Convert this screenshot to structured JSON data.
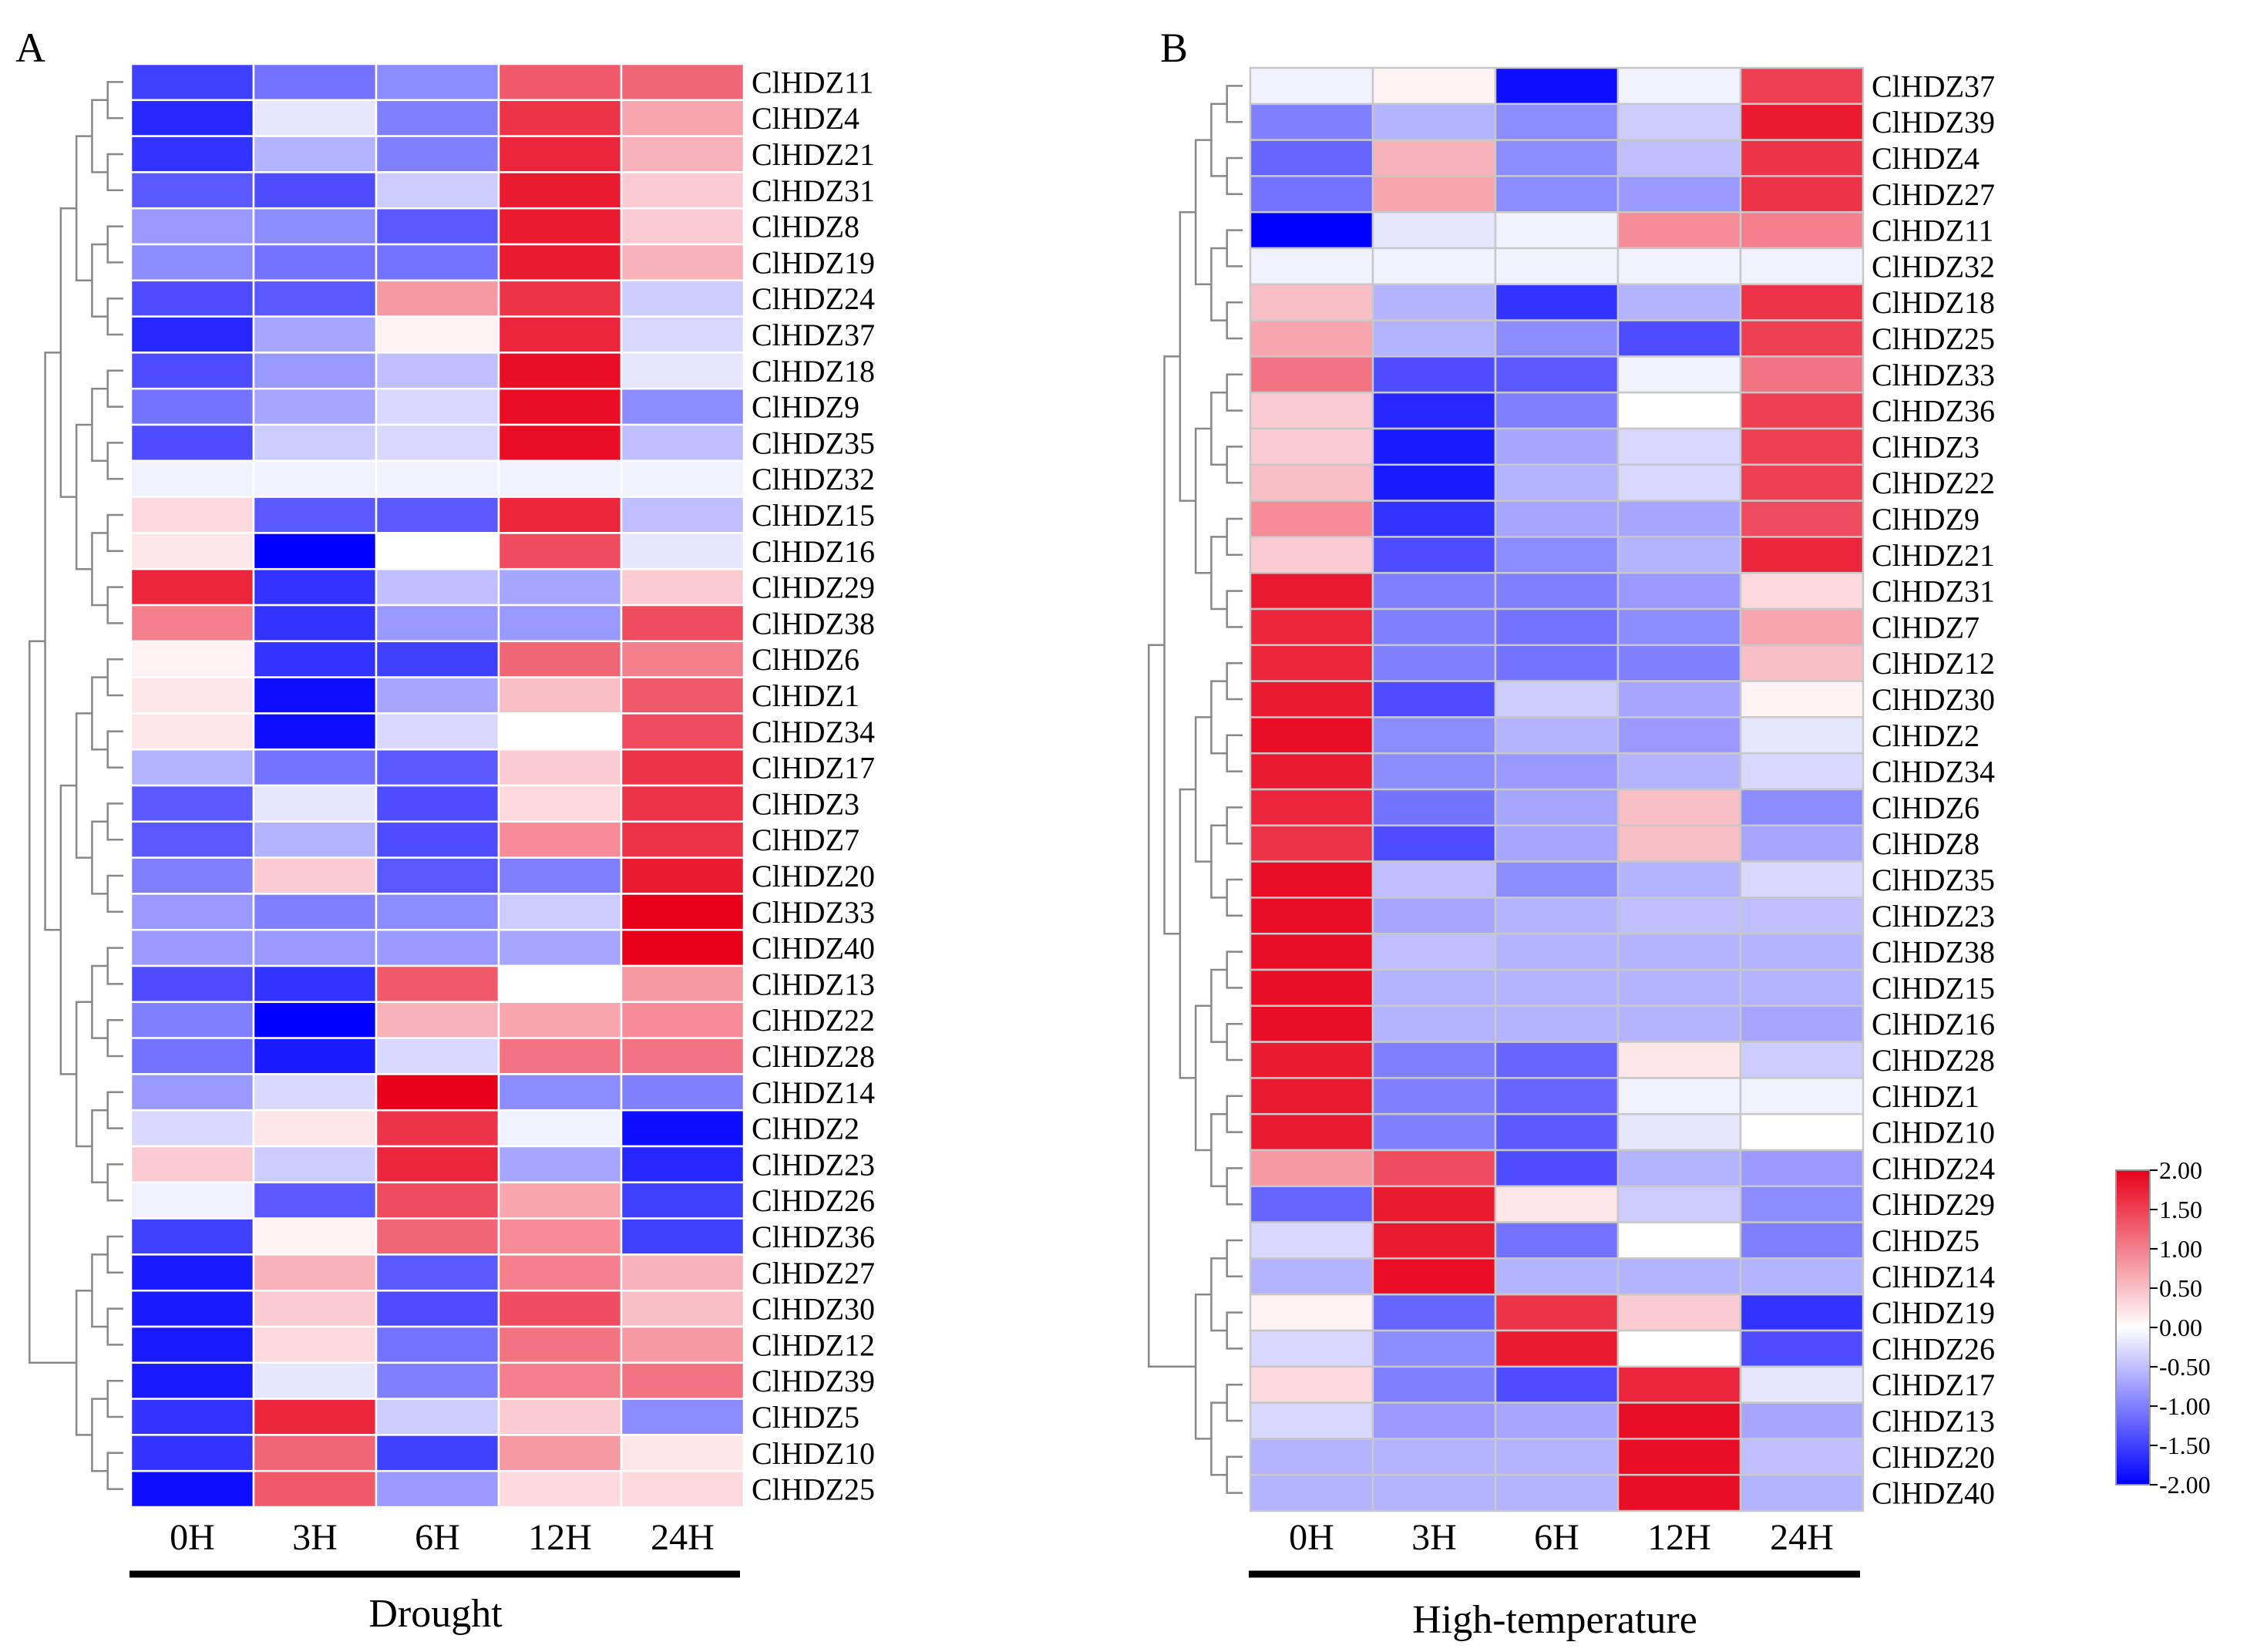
{
  "chart_data": [
    {
      "type": "heatmap",
      "panel_label": "A",
      "group_label": "Drought",
      "x_categories": [
        "0H",
        "3H",
        "6H",
        "12H",
        "24H"
      ],
      "rows": [
        {
          "gene": "ClHDZ11",
          "values": [
            -1.5,
            -1.1,
            -0.9,
            1.3,
            1.2
          ]
        },
        {
          "gene": "ClHDZ4",
          "values": [
            -1.7,
            -0.2,
            -1.0,
            1.6,
            0.7
          ]
        },
        {
          "gene": "ClHDZ21",
          "values": [
            -1.6,
            -0.6,
            -1.0,
            1.7,
            0.6
          ]
        },
        {
          "gene": "ClHDZ31",
          "values": [
            -1.3,
            -1.4,
            -0.4,
            1.8,
            0.4
          ]
        },
        {
          "gene": "ClHDZ8",
          "values": [
            -0.8,
            -0.9,
            -1.3,
            1.8,
            0.4
          ]
        },
        {
          "gene": "ClHDZ19",
          "values": [
            -0.9,
            -1.1,
            -1.1,
            1.8,
            0.6
          ]
        },
        {
          "gene": "ClHDZ24",
          "values": [
            -1.4,
            -1.3,
            0.8,
            1.6,
            -0.4
          ]
        },
        {
          "gene": "ClHDZ37",
          "values": [
            -1.7,
            -0.7,
            0.1,
            1.7,
            -0.3
          ]
        },
        {
          "gene": "ClHDZ18",
          "values": [
            -1.4,
            -0.8,
            -0.5,
            1.9,
            -0.2
          ]
        },
        {
          "gene": "ClHDZ9",
          "values": [
            -1.1,
            -0.7,
            -0.3,
            1.9,
            -0.9
          ]
        },
        {
          "gene": "ClHDZ35",
          "values": [
            -1.4,
            -0.4,
            -0.3,
            1.9,
            -0.5
          ]
        },
        {
          "gene": "ClHDZ32",
          "values": [
            -0.1,
            -0.1,
            -0.1,
            -0.1,
            -0.1
          ]
        },
        {
          "gene": "ClHDZ15",
          "values": [
            0.3,
            -1.3,
            -1.3,
            1.7,
            -0.5
          ]
        },
        {
          "gene": "ClHDZ16",
          "values": [
            0.2,
            -2.0,
            0.0,
            1.4,
            -0.2
          ]
        },
        {
          "gene": "ClHDZ29",
          "values": [
            1.7,
            -1.6,
            -0.5,
            -0.7,
            0.4
          ]
        },
        {
          "gene": "ClHDZ38",
          "values": [
            1.0,
            -1.6,
            -0.8,
            -0.8,
            1.4
          ]
        },
        {
          "gene": "ClHDZ6",
          "values": [
            0.1,
            -1.6,
            -1.5,
            1.2,
            1.0
          ]
        },
        {
          "gene": "ClHDZ1",
          "values": [
            0.2,
            -1.9,
            -0.7,
            0.5,
            1.3
          ]
        },
        {
          "gene": "ClHDZ34",
          "values": [
            0.2,
            -1.9,
            -0.3,
            0.0,
            1.4
          ]
        },
        {
          "gene": "ClHDZ17",
          "values": [
            -0.6,
            -1.1,
            -1.3,
            0.4,
            1.6
          ]
        },
        {
          "gene": "ClHDZ3",
          "values": [
            -1.3,
            -0.2,
            -1.4,
            0.3,
            1.6
          ]
        },
        {
          "gene": "ClHDZ7",
          "values": [
            -1.3,
            -0.6,
            -1.4,
            0.9,
            1.6
          ]
        },
        {
          "gene": "ClHDZ20",
          "values": [
            -1.0,
            0.4,
            -1.3,
            -1.0,
            1.8
          ]
        },
        {
          "gene": "ClHDZ33",
          "values": [
            -0.8,
            -1.0,
            -0.9,
            -0.4,
            2.0
          ]
        },
        {
          "gene": "ClHDZ40",
          "values": [
            -0.8,
            -0.8,
            -0.8,
            -0.7,
            2.0
          ]
        },
        {
          "gene": "ClHDZ13",
          "values": [
            -1.4,
            -1.6,
            1.3,
            0.0,
            0.8
          ]
        },
        {
          "gene": "ClHDZ22",
          "values": [
            -1.0,
            -2.0,
            0.6,
            0.7,
            0.9
          ]
        },
        {
          "gene": "ClHDZ28",
          "values": [
            -1.1,
            -1.8,
            -0.3,
            1.1,
            1.1
          ]
        },
        {
          "gene": "ClHDZ14",
          "values": [
            -0.8,
            -0.3,
            2.0,
            -0.9,
            -1.0
          ]
        },
        {
          "gene": "ClHDZ2",
          "values": [
            -0.3,
            0.2,
            1.6,
            -0.1,
            -1.9
          ]
        },
        {
          "gene": "ClHDZ23",
          "values": [
            0.4,
            -0.4,
            1.7,
            -0.7,
            -1.7
          ]
        },
        {
          "gene": "ClHDZ26",
          "values": [
            -0.1,
            -1.3,
            1.4,
            0.7,
            -1.5
          ]
        },
        {
          "gene": "ClHDZ36",
          "values": [
            -1.5,
            0.1,
            1.2,
            0.9,
            -1.5
          ]
        },
        {
          "gene": "ClHDZ27",
          "values": [
            -1.8,
            0.6,
            -1.3,
            1.0,
            0.6
          ]
        },
        {
          "gene": "ClHDZ30",
          "values": [
            -1.8,
            0.4,
            -1.4,
            1.4,
            0.5
          ]
        },
        {
          "gene": "ClHDZ12",
          "values": [
            -1.8,
            0.3,
            -1.1,
            1.1,
            0.8
          ]
        },
        {
          "gene": "ClHDZ39",
          "values": [
            -1.8,
            -0.2,
            -1.0,
            1.0,
            1.1
          ]
        },
        {
          "gene": "ClHDZ5",
          "values": [
            -1.6,
            1.7,
            -0.4,
            0.4,
            -0.9
          ]
        },
        {
          "gene": "ClHDZ10",
          "values": [
            -1.6,
            1.2,
            -1.5,
            0.8,
            0.2
          ]
        },
        {
          "gene": "ClHDZ25",
          "values": [
            -1.9,
            1.3,
            -0.8,
            0.3,
            0.3
          ]
        }
      ]
    },
    {
      "type": "heatmap",
      "panel_label": "B",
      "group_label": "High-temperature",
      "x_categories": [
        "0H",
        "3H",
        "6H",
        "12H",
        "24H"
      ],
      "rows": [
        {
          "gene": "ClHDZ37",
          "values": [
            -0.1,
            0.1,
            -1.9,
            -0.1,
            1.5
          ]
        },
        {
          "gene": "ClHDZ39",
          "values": [
            -1.0,
            -0.6,
            -0.9,
            -0.4,
            1.8
          ]
        },
        {
          "gene": "ClHDZ4",
          "values": [
            -1.2,
            0.6,
            -0.9,
            -0.5,
            1.6
          ]
        },
        {
          "gene": "ClHDZ27",
          "values": [
            -1.1,
            0.7,
            -0.9,
            -0.8,
            1.6
          ]
        },
        {
          "gene": "ClHDZ11",
          "values": [
            -2.0,
            -0.2,
            -0.1,
            0.9,
            1.0
          ]
        },
        {
          "gene": "ClHDZ32",
          "values": [
            -0.1,
            -0.1,
            -0.1,
            -0.1,
            -0.1
          ]
        },
        {
          "gene": "ClHDZ18",
          "values": [
            0.5,
            -0.6,
            -1.6,
            -0.6,
            1.6
          ]
        },
        {
          "gene": "ClHDZ25",
          "values": [
            0.7,
            -0.6,
            -0.9,
            -1.4,
            1.5
          ]
        },
        {
          "gene": "ClHDZ33",
          "values": [
            1.1,
            -1.4,
            -1.3,
            -0.1,
            1.1
          ]
        },
        {
          "gene": "ClHDZ36",
          "values": [
            0.4,
            -1.7,
            -1.0,
            0.0,
            1.5
          ]
        },
        {
          "gene": "ClHDZ3",
          "values": [
            0.4,
            -1.8,
            -0.7,
            -0.3,
            1.5
          ]
        },
        {
          "gene": "ClHDZ22",
          "values": [
            0.5,
            -1.8,
            -0.6,
            -0.3,
            1.5
          ]
        },
        {
          "gene": "ClHDZ9",
          "values": [
            0.9,
            -1.6,
            -0.7,
            -0.7,
            1.4
          ]
        },
        {
          "gene": "ClHDZ21",
          "values": [
            0.4,
            -1.4,
            -0.9,
            -0.6,
            1.7
          ]
        },
        {
          "gene": "ClHDZ31",
          "values": [
            1.8,
            -1.0,
            -1.0,
            -0.8,
            0.3
          ]
        },
        {
          "gene": "ClHDZ7",
          "values": [
            1.7,
            -1.0,
            -1.1,
            -0.9,
            0.7
          ]
        },
        {
          "gene": "ClHDZ12",
          "values": [
            1.7,
            -1.0,
            -1.1,
            -1.0,
            0.5
          ]
        },
        {
          "gene": "ClHDZ30",
          "values": [
            1.8,
            -1.4,
            -0.4,
            -0.7,
            0.1
          ]
        },
        {
          "gene": "ClHDZ2",
          "values": [
            1.9,
            -0.9,
            -0.6,
            -0.8,
            -0.2
          ]
        },
        {
          "gene": "ClHDZ34",
          "values": [
            1.8,
            -0.9,
            -0.8,
            -0.6,
            -0.3
          ]
        },
        {
          "gene": "ClHDZ6",
          "values": [
            1.7,
            -1.1,
            -0.7,
            0.5,
            -0.9
          ]
        },
        {
          "gene": "ClHDZ8",
          "values": [
            1.6,
            -1.4,
            -0.7,
            0.5,
            -0.7
          ]
        },
        {
          "gene": "ClHDZ35",
          "values": [
            1.9,
            -0.5,
            -0.9,
            -0.6,
            -0.3
          ]
        },
        {
          "gene": "ClHDZ23",
          "values": [
            1.9,
            -0.7,
            -0.6,
            -0.5,
            -0.5
          ]
        },
        {
          "gene": "ClHDZ38",
          "values": [
            1.9,
            -0.5,
            -0.6,
            -0.6,
            -0.6
          ]
        },
        {
          "gene": "ClHDZ15",
          "values": [
            1.9,
            -0.6,
            -0.6,
            -0.6,
            -0.6
          ]
        },
        {
          "gene": "ClHDZ16",
          "values": [
            1.9,
            -0.6,
            -0.6,
            -0.6,
            -0.7
          ]
        },
        {
          "gene": "ClHDZ28",
          "values": [
            1.8,
            -1.0,
            -1.2,
            0.2,
            -0.4
          ]
        },
        {
          "gene": "ClHDZ1",
          "values": [
            1.8,
            -1.0,
            -1.2,
            -0.1,
            -0.1
          ]
        },
        {
          "gene": "ClHDZ10",
          "values": [
            1.8,
            -1.0,
            -1.3,
            -0.2,
            0.0
          ]
        },
        {
          "gene": "ClHDZ24",
          "values": [
            0.8,
            1.4,
            -1.4,
            -0.6,
            -0.8
          ]
        },
        {
          "gene": "ClHDZ29",
          "values": [
            -1.2,
            1.8,
            0.2,
            -0.4,
            -0.9
          ]
        },
        {
          "gene": "ClHDZ5",
          "values": [
            -0.3,
            1.8,
            -1.1,
            0.0,
            -1.0
          ]
        },
        {
          "gene": "ClHDZ14",
          "values": [
            -0.6,
            1.9,
            -0.6,
            -0.6,
            -0.6
          ]
        },
        {
          "gene": "ClHDZ19",
          "values": [
            0.1,
            -1.2,
            1.6,
            0.4,
            -1.6
          ]
        },
        {
          "gene": "ClHDZ26",
          "values": [
            -0.3,
            -0.9,
            1.8,
            0.0,
            -1.4
          ]
        },
        {
          "gene": "ClHDZ17",
          "values": [
            0.3,
            -1.0,
            -1.4,
            1.7,
            -0.2
          ]
        },
        {
          "gene": "ClHDZ13",
          "values": [
            -0.3,
            -0.8,
            -0.7,
            1.9,
            -0.7
          ]
        },
        {
          "gene": "ClHDZ20",
          "values": [
            -0.6,
            -0.6,
            -0.6,
            1.9,
            -0.5
          ]
        },
        {
          "gene": "ClHDZ40",
          "values": [
            -0.6,
            -0.6,
            -0.6,
            1.9,
            -0.6
          ]
        }
      ]
    }
  ],
  "colorbar": {
    "range": [
      -2,
      2
    ],
    "ticks": [
      "2.00",
      "1.50",
      "1.00",
      "0.50",
      "0.00",
      "-0.50",
      "-1.00",
      "-1.50",
      "-2.00"
    ],
    "colors": {
      "low": "#0000ff",
      "mid": "#ffffff",
      "high": "#e8001a"
    }
  }
}
